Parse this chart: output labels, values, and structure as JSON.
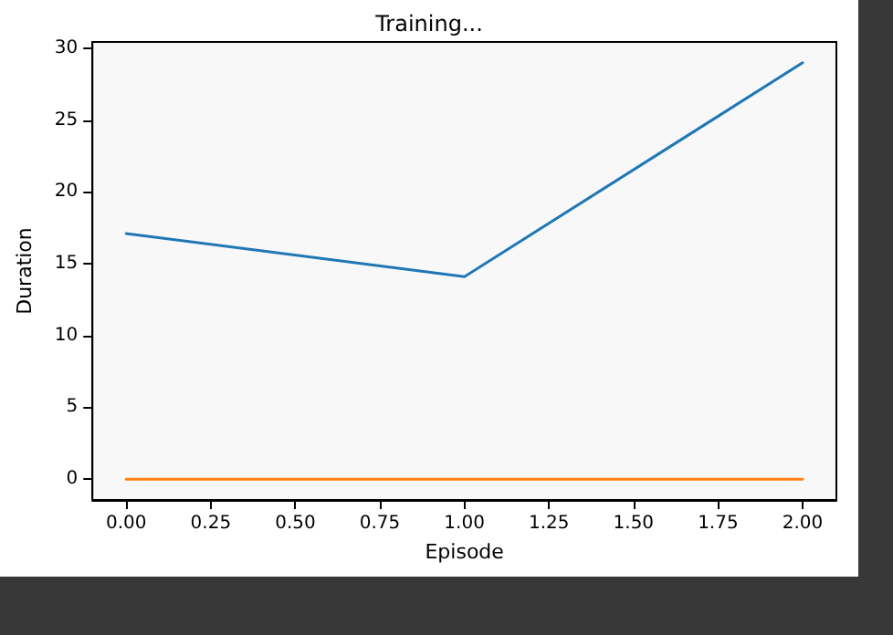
{
  "chart_data": {
    "type": "line",
    "title": "Training...",
    "xlabel": "Episode",
    "ylabel": "Duration",
    "x": [
      0,
      1,
      2
    ],
    "series": [
      {
        "color": "#1f77b4",
        "values": [
          17.1,
          14.1,
          29
        ]
      },
      {
        "color": "#ff7f0e",
        "values": [
          0,
          0,
          0
        ]
      }
    ],
    "xlim": [
      -0.1,
      2.1
    ],
    "ylim": [
      -1.45,
      30.45
    ],
    "xticks": [
      {
        "value": 0,
        "label": "0.00"
      },
      {
        "value": 0.25,
        "label": "0.25"
      },
      {
        "value": 0.5,
        "label": "0.50"
      },
      {
        "value": 0.75,
        "label": "0.75"
      },
      {
        "value": 1,
        "label": "1.00"
      },
      {
        "value": 1.25,
        "label": "1.25"
      },
      {
        "value": 1.5,
        "label": "1.50"
      },
      {
        "value": 1.75,
        "label": "1.75"
      },
      {
        "value": 2,
        "label": "2.00"
      }
    ],
    "yticks": [
      0,
      5,
      10,
      15,
      20,
      25,
      30
    ],
    "marker": "none",
    "line_style": "solid"
  }
}
